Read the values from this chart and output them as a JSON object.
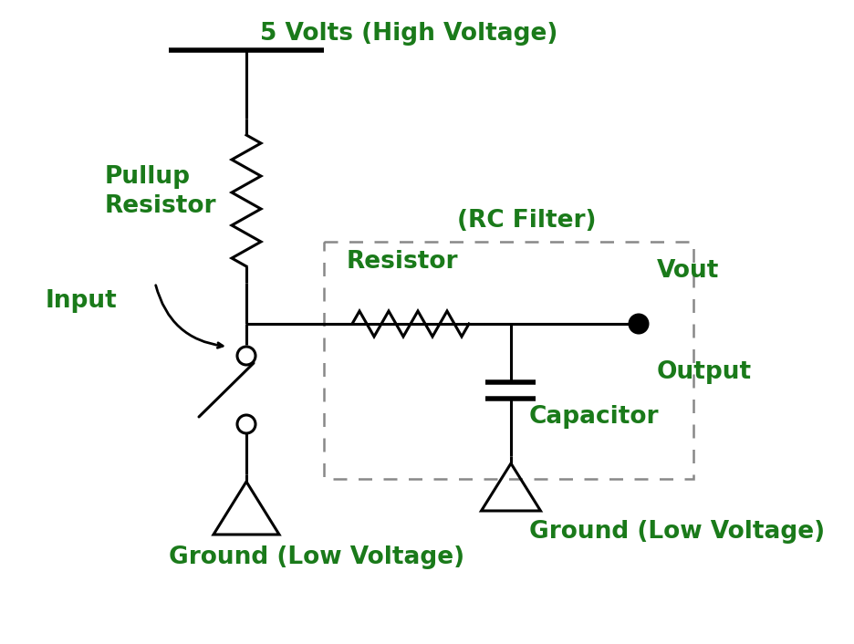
{
  "bg_color": "#ffffff",
  "line_color": "#000000",
  "green_color": "#1a7a1a",
  "dashed_box_color": "#888888",
  "labels": {
    "vcc": "5 Volts (High Voltage)",
    "pullup": "Pullup\nResistor",
    "rc_filter": "(RC Filter)",
    "resistor": "Resistor",
    "vout": "Vout",
    "output": "Output",
    "capacitor": "Capacitor",
    "gnd1": "Ground (Low Voltage)",
    "gnd2": "Ground (Low Voltage)",
    "input": "Input"
  },
  "figsize": [
    9.37,
    7.06
  ],
  "dpi": 100
}
